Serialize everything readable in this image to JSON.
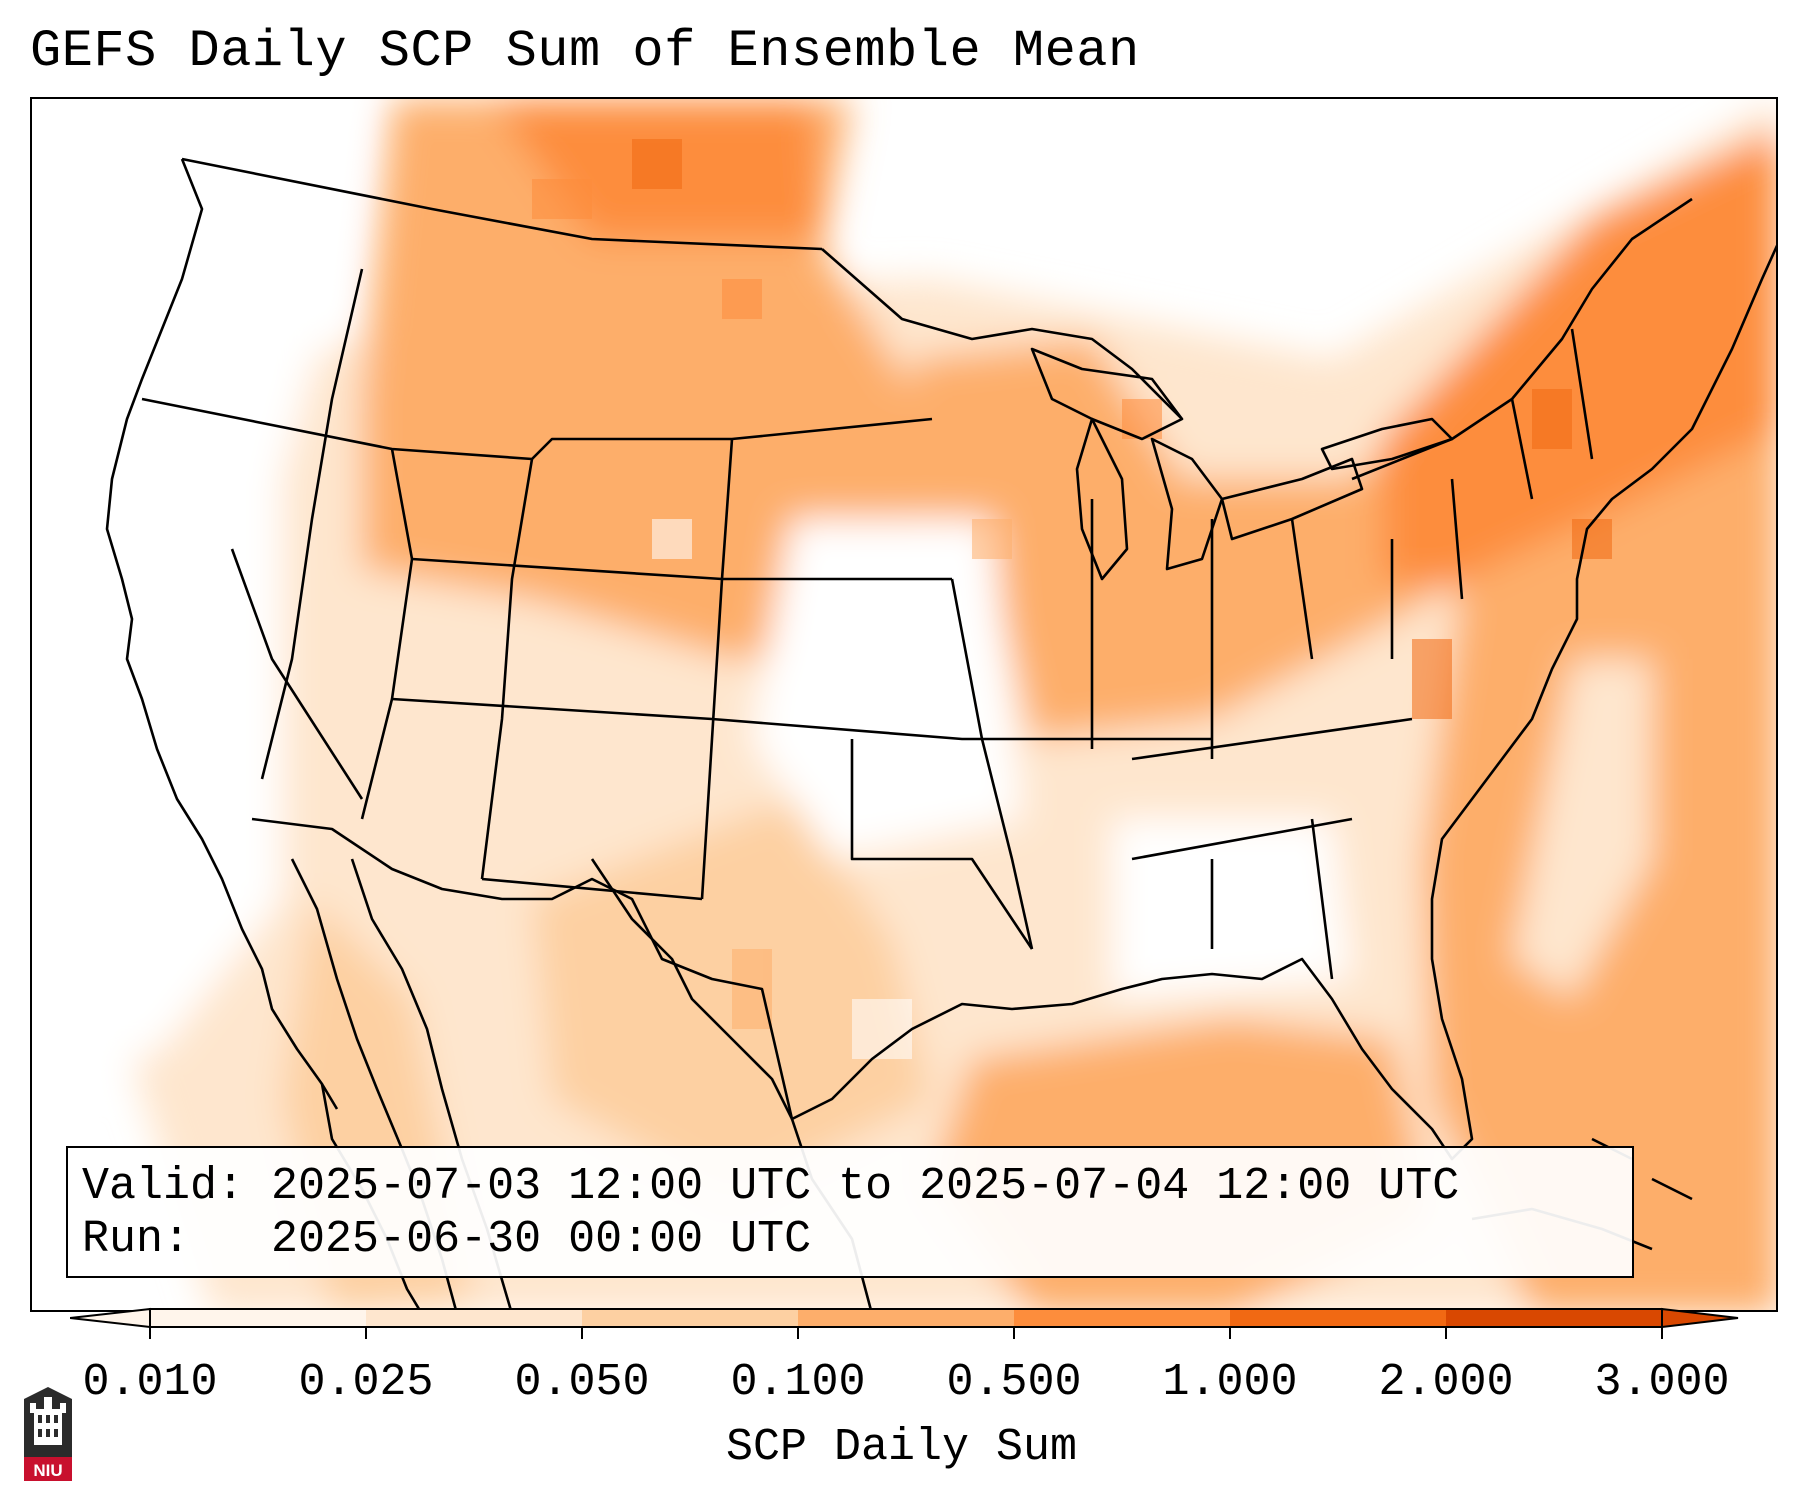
{
  "title": "GEFS Daily SCP Sum of Ensemble Mean",
  "info": {
    "valid_label": "Valid:",
    "valid_value": "2025-07-03 12:00 UTC to 2025-07-04 12:00 UTC",
    "run_label": "Run:",
    "run_value": "2025-06-30 00:00 UTC"
  },
  "colorbar": {
    "label": "SCP Daily Sum",
    "ticks": [
      "0.010",
      "0.025",
      "0.050",
      "0.100",
      "0.500",
      "1.000",
      "2.000",
      "3.000"
    ],
    "colors": [
      "#fff5eb",
      "#fee6ce",
      "#fdd0a2",
      "#fdae6b",
      "#fd8d3c",
      "#f16913",
      "#d94801"
    ],
    "extend": "both"
  },
  "logo": {
    "text": "NIU",
    "icon": "niu-logo-icon"
  }
}
